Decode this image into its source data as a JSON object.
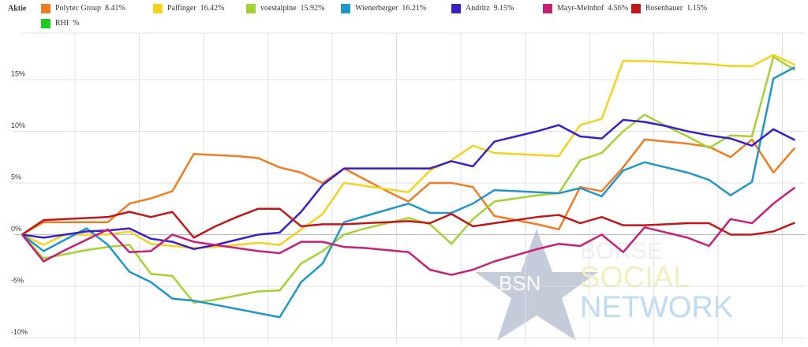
{
  "chart_data": {
    "type": "line",
    "legend_title": "Aktie",
    "x": [
      0,
      1,
      2,
      3,
      4,
      5,
      6,
      7,
      8,
      9,
      10,
      11,
      12,
      13,
      14,
      15,
      16,
      17,
      18,
      19,
      20,
      21,
      22,
      23,
      24,
      25,
      26,
      27,
      28,
      29,
      30,
      31,
      32,
      33,
      34,
      35,
      36
    ],
    "xlim": [
      0,
      36.5
    ],
    "ylim": [
      -10.5,
      19.5
    ],
    "yticks": [
      {
        "value": 15,
        "label": "15%"
      },
      {
        "value": 10,
        "label": "10%"
      },
      {
        "value": 5,
        "label": "5%"
      },
      {
        "value": 0,
        "label": "0%"
      },
      {
        "value": -5,
        "label": "-5%"
      },
      {
        "value": -10,
        "label": "-10%"
      }
    ],
    "grid": true,
    "series": [
      {
        "name": "Polytec Group",
        "legend_label": "8.41%",
        "color": "#f07c22",
        "values": [
          0,
          1.2,
          1.2,
          1.2,
          1.2,
          3,
          3.5,
          4.2,
          7.8,
          7.7,
          7.6,
          7.4,
          6.5,
          6.0,
          5.0,
          6.4,
          5.3,
          4.2,
          3.2,
          5,
          5,
          4.6,
          1.8,
          1.4,
          1.0,
          0.5,
          4.6,
          4.2,
          6.5,
          9.2,
          9.0,
          8.8,
          8.5,
          7.5,
          9.2,
          6.0,
          8.41
        ]
      },
      {
        "name": "Palfinger",
        "legend_label": "16.42%",
        "color": "#f5d21e",
        "values": [
          0,
          -1,
          0,
          0,
          0,
          0.3,
          -0.9,
          -1.1,
          -1.3,
          -1.2,
          -1.0,
          -0.8,
          -1.0,
          0.5,
          2,
          5,
          4.7,
          4.4,
          4.1,
          6.2,
          7.2,
          8.6,
          7.9,
          7.8,
          7.7,
          7.6,
          10.6,
          11.2,
          16.8,
          16.8,
          16.7,
          16.6,
          16.5,
          16.3,
          16.3,
          17.4,
          16.42
        ]
      },
      {
        "name": "voestalpine",
        "legend_label": "15.92%",
        "color": "#a4d233",
        "values": [
          0,
          -2.3,
          -1.9,
          -1.5,
          -1.2,
          -1.0,
          -3.8,
          -4.0,
          -6.6,
          -6.3,
          -5.9,
          -5.5,
          -5.4,
          -2.8,
          -1.6,
          0,
          0.6,
          1.1,
          1.6,
          1.0,
          -0.9,
          1.5,
          3.2,
          3.5,
          3.8,
          4.0,
          7.2,
          7.9,
          10,
          11.6,
          10.5,
          9.5,
          8.4,
          9.6,
          9.5,
          17.2,
          15.92
        ]
      },
      {
        "name": "Wienerberger",
        "legend_label": "16.21%",
        "color": "#2196c8",
        "values": [
          0,
          -1.6,
          -0.5,
          0.6,
          -1.0,
          -3.6,
          -4.6,
          -6.2,
          -6.4,
          -6.8,
          -7.2,
          -7.6,
          -8.0,
          -4.6,
          -2.8,
          1.2,
          1.8,
          2.4,
          3.0,
          2.1,
          2.1,
          3.0,
          4.3,
          4.2,
          4.1,
          4.0,
          4.5,
          3.7,
          6.2,
          7.0,
          6.5,
          6.0,
          5.3,
          3.8,
          5.1,
          15.1,
          16.21
        ]
      },
      {
        "name": "Andritz",
        "legend_label": "9.15%",
        "color": "#3a1ec8",
        "values": [
          0,
          -0.3,
          0,
          0.3,
          0.4,
          0.6,
          -0.4,
          -0.7,
          -1.4,
          -1.0,
          -0.5,
          0,
          0.2,
          2.2,
          4.8,
          6.4,
          6.4,
          6.4,
          6.4,
          6.4,
          7.1,
          6.6,
          9.0,
          9.5,
          10,
          10.6,
          9.5,
          9.3,
          11.1,
          10.9,
          10.5,
          10,
          9.6,
          9.3,
          8.6,
          10.2,
          9.15
        ]
      },
      {
        "name": "Mayr-Melnhof",
        "legend_label": "4.56%",
        "color": "#c81e78",
        "values": [
          0,
          -2.6,
          -1.5,
          -0.5,
          0.5,
          -1.7,
          -1.6,
          0,
          -0.7,
          -1.0,
          -1.3,
          -1.6,
          -1.8,
          -0.7,
          -0.7,
          -1.2,
          -1.3,
          -1.5,
          -1.7,
          -3.4,
          -3.9,
          -3.4,
          -2.6,
          -2.0,
          -1.4,
          -0.9,
          -1.1,
          0,
          -1.7,
          0.7,
          0.2,
          -0.3,
          -1.1,
          1.5,
          1.1,
          3.0,
          4.56
        ]
      },
      {
        "name": "Rosenbauer",
        "legend_label": "1.15%",
        "color": "#c01818",
        "values": [
          0,
          1.4,
          1.5,
          1.6,
          1.7,
          2.2,
          1.7,
          2.2,
          -0.3,
          0.8,
          1.7,
          2.5,
          2.5,
          0.8,
          1.0,
          1.0,
          1.1,
          1.2,
          1.3,
          1.1,
          2.0,
          0.8,
          1.1,
          1.4,
          1.7,
          1.9,
          1.1,
          1.7,
          0.9,
          0.9,
          1.0,
          1.1,
          1.1,
          0,
          0,
          0.3,
          1.15
        ]
      },
      {
        "name": "RHI",
        "legend_label": "%",
        "color": "#22c822",
        "values": [
          null,
          null,
          null,
          null,
          null,
          null,
          null,
          null,
          null,
          null,
          null,
          null,
          null,
          null,
          null,
          null,
          null,
          null,
          null,
          null,
          null,
          null,
          null,
          null,
          null,
          null,
          null,
          null,
          null,
          null,
          null,
          null,
          null,
          null,
          null,
          null,
          null
        ]
      }
    ],
    "watermark": {
      "logo": "BSN",
      "line1": "BÖRSE",
      "line2": "SOCIAL",
      "line3": "NETWORK"
    }
  }
}
